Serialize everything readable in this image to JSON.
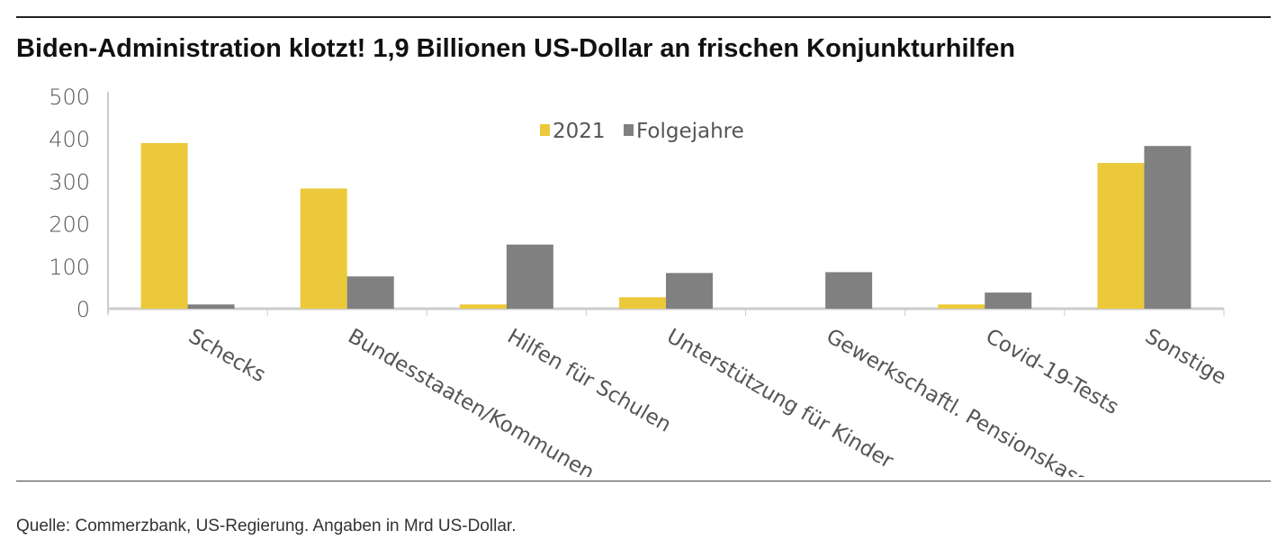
{
  "title": "Biden-Administration klotzt! 1,9 Billionen US-Dollar an frischen Konjunkturhilfen",
  "source": "Quelle: Commerzbank, US-Regierung. Angaben in Mrd US-Dollar.",
  "chart_data": {
    "type": "bar",
    "title": "Biden-Administration klotzt! 1,9 Billionen US-Dollar an frischen Konjunkturhilfen",
    "xlabel": "",
    "ylabel": "",
    "ylim": [
      0,
      500
    ],
    "yticks": [
      "0",
      "100",
      "200",
      "300",
      "400",
      "500"
    ],
    "grid": false,
    "legend_position": "top-center",
    "categories": [
      "Schecks",
      "Bundesstaaten/Kommunen",
      "Hilfen für Schulen",
      "Unterstützung für Kinder",
      "Gewerkschaftl. Pensionskassen",
      "Covid-19-Tests",
      "Sonstige"
    ],
    "series": [
      {
        "name": "2021",
        "color": "#ecc93a",
        "values": [
          390,
          283,
          10,
          27,
          0,
          10,
          343
        ]
      },
      {
        "name": "Folgejahre",
        "color": "#808080",
        "values": [
          10,
          76,
          151,
          84,
          86,
          38,
          383
        ]
      }
    ]
  }
}
